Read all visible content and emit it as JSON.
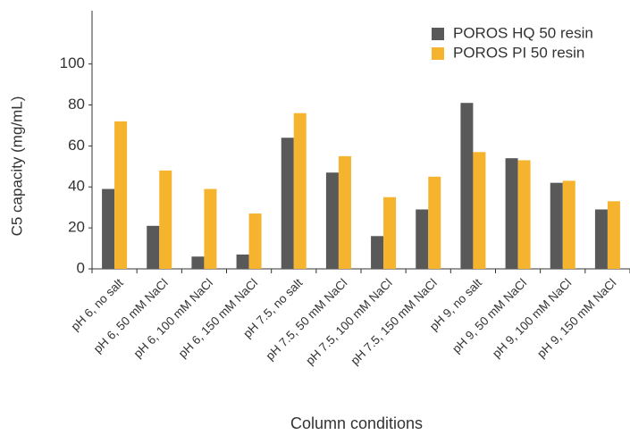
{
  "chart_data": {
    "type": "bar",
    "xlabel": "Column conditions",
    "ylabel": "C5 capacity (mg/mL)",
    "categories": [
      "pH 6, no salt",
      "pH 6, 50 mM NaCl",
      "pH 6, 100 mM NaCl",
      "pH 6, 150 mM NaCl",
      "pH 7.5, no salt",
      "pH 7.5, 50 mM NaCl",
      "pH 7.5, 100 mM NaCl",
      "pH 7.5, 150 mM NaCl",
      "pH 9, no salt",
      "pH 9, 50 mM NaCl",
      "pH 9, 100 mM NaCl",
      "pH 9, 150 mM NaCl"
    ],
    "series": [
      {
        "name": "POROS HQ 50 resin",
        "color": "#595959",
        "values": [
          39,
          21,
          6,
          7,
          64,
          47,
          16,
          29,
          81,
          54,
          42,
          29
        ]
      },
      {
        "name": "POROS PI 50 resin",
        "color": "#f6b32e",
        "values": [
          72,
          48,
          39,
          27,
          76,
          55,
          35,
          45,
          57,
          53,
          43,
          33
        ]
      }
    ],
    "ylim": [
      0,
      126
    ],
    "yticks": [
      0,
      20,
      40,
      60,
      80,
      100
    ],
    "grid": false,
    "legend": "top-right"
  }
}
